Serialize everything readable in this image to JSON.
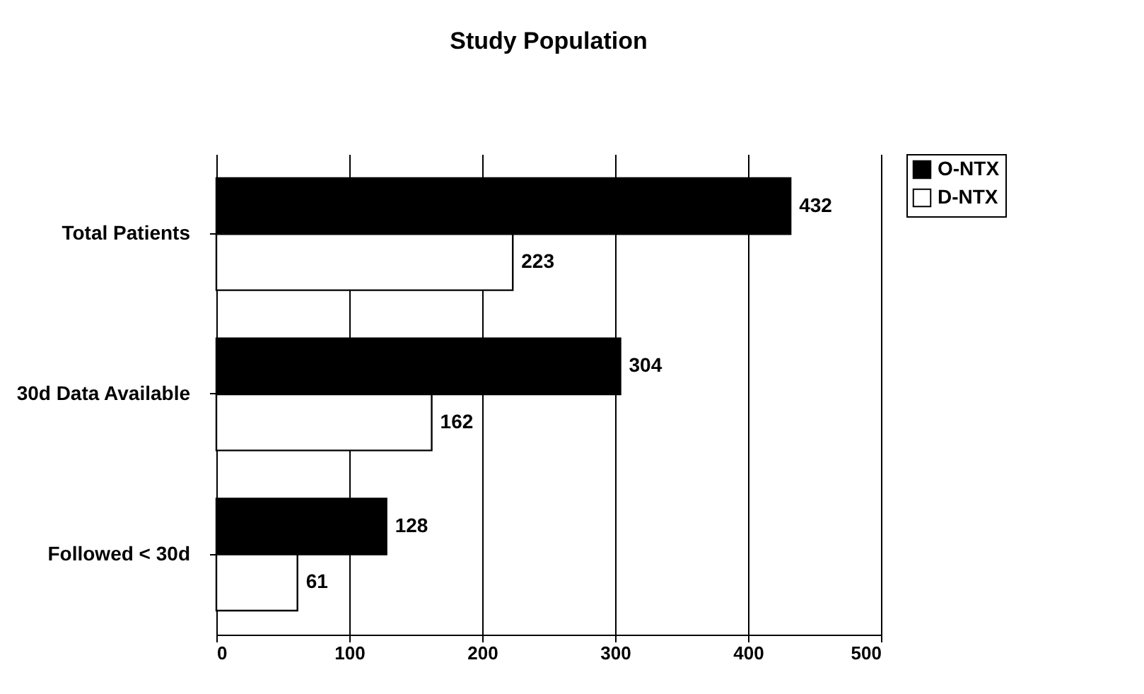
{
  "chart_data": {
    "type": "bar",
    "orientation": "horizontal",
    "title": "Study Population",
    "categories": [
      "Total Patients",
      "30d Data Available",
      "Followed < 30d"
    ],
    "series": [
      {
        "name": "O-NTX",
        "color": "#000000",
        "values": [
          432,
          304,
          128
        ]
      },
      {
        "name": "D-NTX",
        "color": "#ffffff",
        "values": [
          223,
          162,
          61
        ]
      }
    ],
    "xlim": [
      0,
      500
    ],
    "xticks": [
      0,
      100,
      200,
      300,
      400,
      500
    ],
    "grid": "x",
    "legend": "right",
    "data_labels": true
  }
}
